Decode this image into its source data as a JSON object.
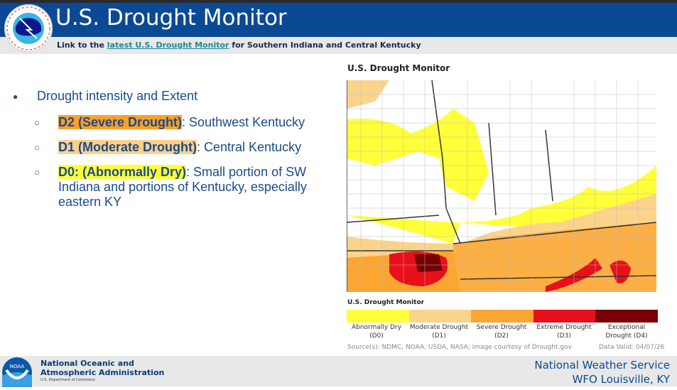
{
  "header": {
    "title": "U.S. Drought Monitor",
    "logo_text": "NATIONAL WEATHER SERVICE"
  },
  "subheader": {
    "prefix": "Link to the ",
    "link": "latest U.S. Drought Monitor",
    "suffix": " for Southern Indiana and Central Kentucky"
  },
  "bullets": {
    "main": "Drought intensity and Extent",
    "items": [
      {
        "label": "D2 (Severe Drought)",
        "text": ": Southwest Kentucky",
        "color": "#f9a02a"
      },
      {
        "label": "D1 (Moderate Drought)",
        "text": ": Central Kentucky",
        "color": "#fdd08a"
      },
      {
        "label": "D0: (Abnormally Dry)",
        "text": ": Small portion of SW Indiana and portions of Kentucky, especially eastern KY",
        "color": "#fefe3a"
      }
    ]
  },
  "map": {
    "title": "U.S. Drought Monitor",
    "legend_title": "U.S. Drought Monitor",
    "legend": [
      {
        "label": "Abnormally Dry (D0)",
        "color": "#ffff3a"
      },
      {
        "label": "Moderate Drought (D1)",
        "color": "#fcd38b"
      },
      {
        "label": "Severe Drought (D2)",
        "color": "#fba632"
      },
      {
        "label": "Extreme Drought (D3)",
        "color": "#e8101a"
      },
      {
        "label": "Exceptional Drought (D4)",
        "color": "#760006"
      }
    ],
    "source": "Source(s): NDMC, NOAA, USDA, NASA; image courtesy of Drought.gov",
    "valid": "Data Valid: 04/07/26"
  },
  "footer": {
    "noaa_logo": "NOAA",
    "noaa_line1": "National Oceanic and",
    "noaa_line2": "Atmospheric Administration",
    "noaa_dept": "U.S. Department of Commerce",
    "nws_line1": "National Weather Service",
    "nws_line2": "WFO Louisville, KY"
  }
}
